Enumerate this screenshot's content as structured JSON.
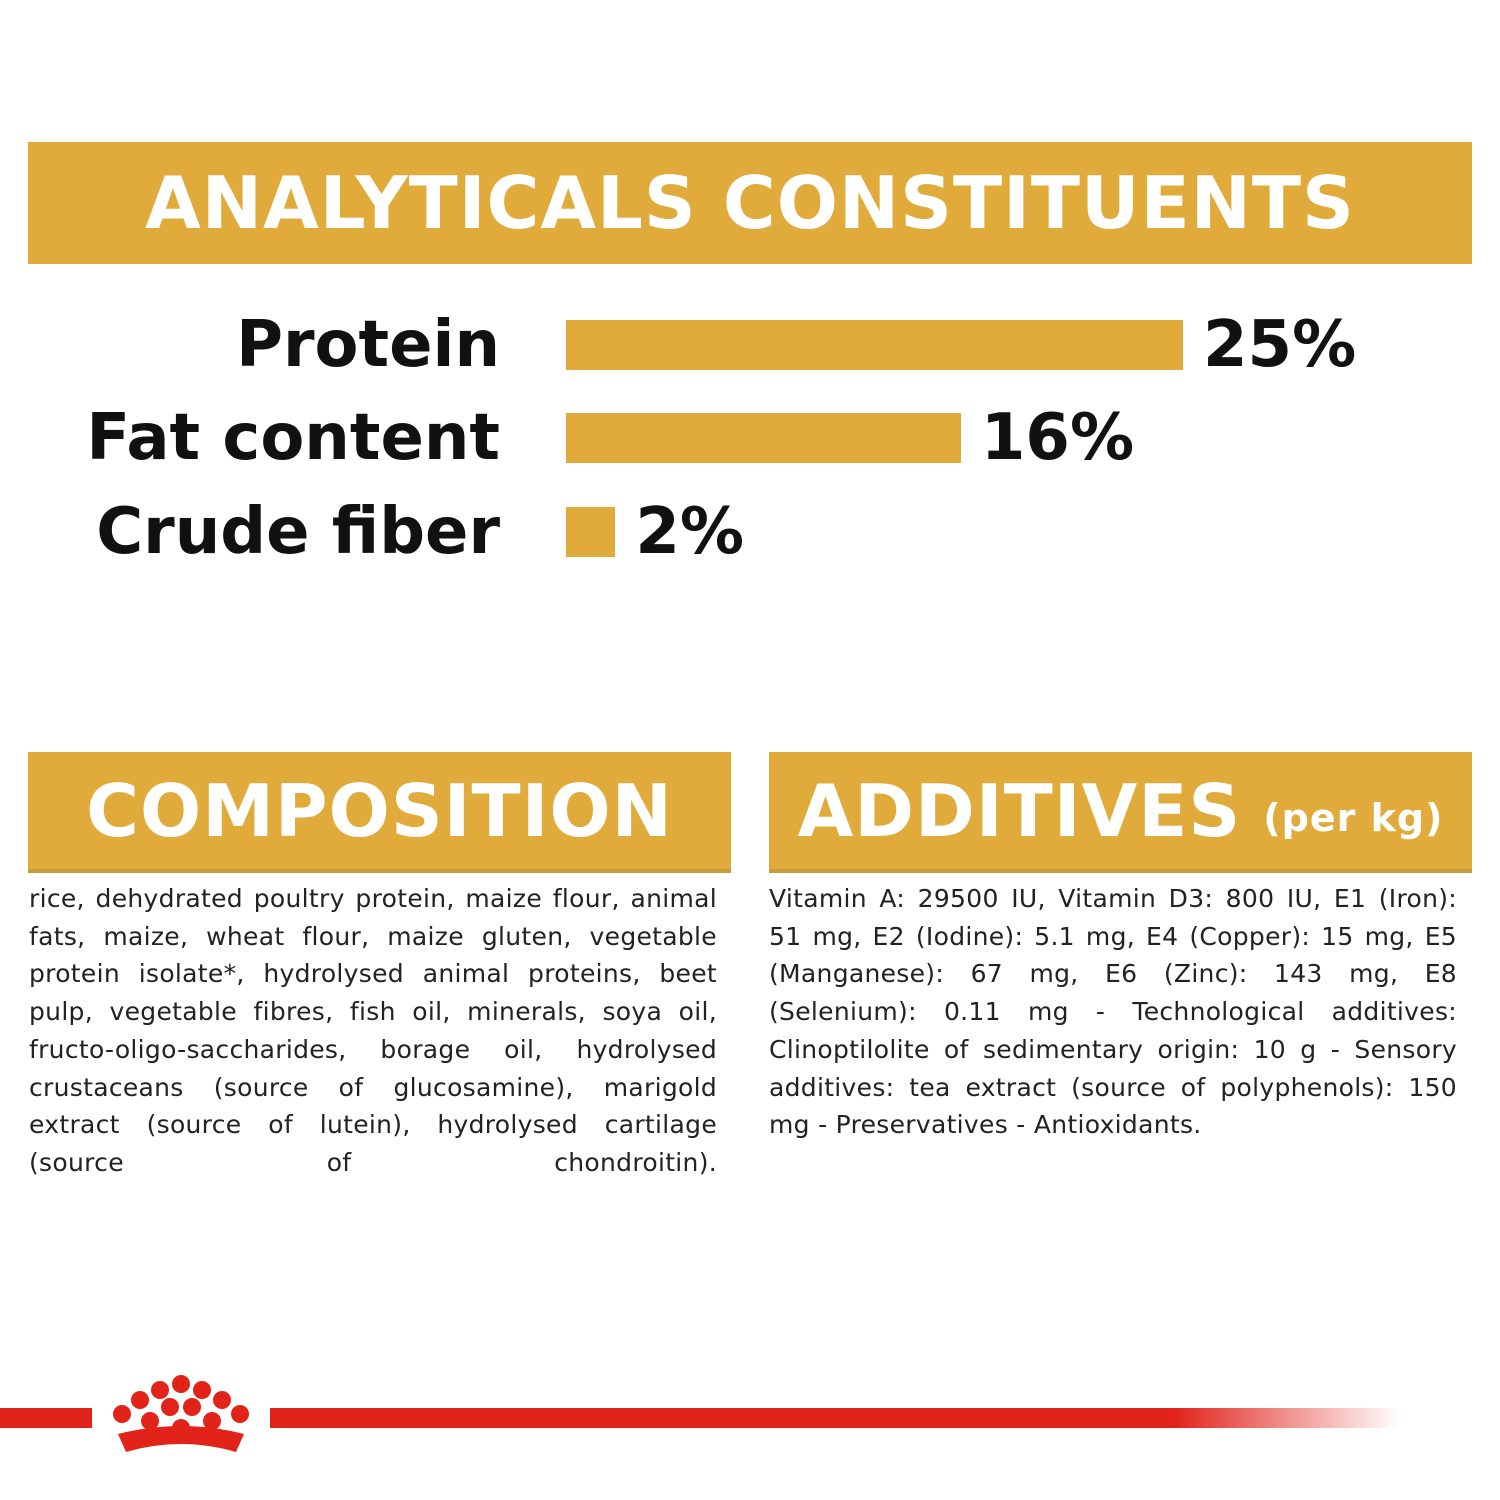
{
  "chart_data": {
    "type": "bar",
    "orientation": "horizontal",
    "title": "ANALYTICALS CONSTITUENTS",
    "categories": [
      "Protein",
      "Fat content",
      "Crude fiber"
    ],
    "values": [
      25,
      16,
      2
    ],
    "value_labels": [
      "25%",
      "16%",
      "2%"
    ],
    "color": "#e0ab3b"
  },
  "composition": {
    "title": "COMPOSITION",
    "text": "rice, dehydrated poultry protein, maize flour, animal fats, maize, wheat flour, maize gluten, vegetable protein isolate*, hydrolysed animal proteins, beet pulp, vegetable fibres, fish oil, minerals, soya oil, fructo-oligo-saccharides, borage oil, hydrolysed crustaceans (source of glucosamine), marigold extract (source of lutein), hydrolysed cartilage (source of chondroitin)."
  },
  "additives": {
    "title": "ADDITIVES",
    "subtitle": "(per kg)",
    "text": "Vitamin A: 29500 IU, Vitamin D3: 800 IU, E1 (Iron): 51 mg, E2 (Iodine): 5.1 mg, E4 (Copper): 15 mg, E5 (Manganese): 67 mg, E6 (Zinc): 143 mg, E8 (Selenium): 0.11 mg - Technological additives: Clinoptilolite of sedimentary origin: 10 g - Sensory additives: tea extract (source of polyphenols): 150 mg - Preservatives - Antioxidants."
  }
}
